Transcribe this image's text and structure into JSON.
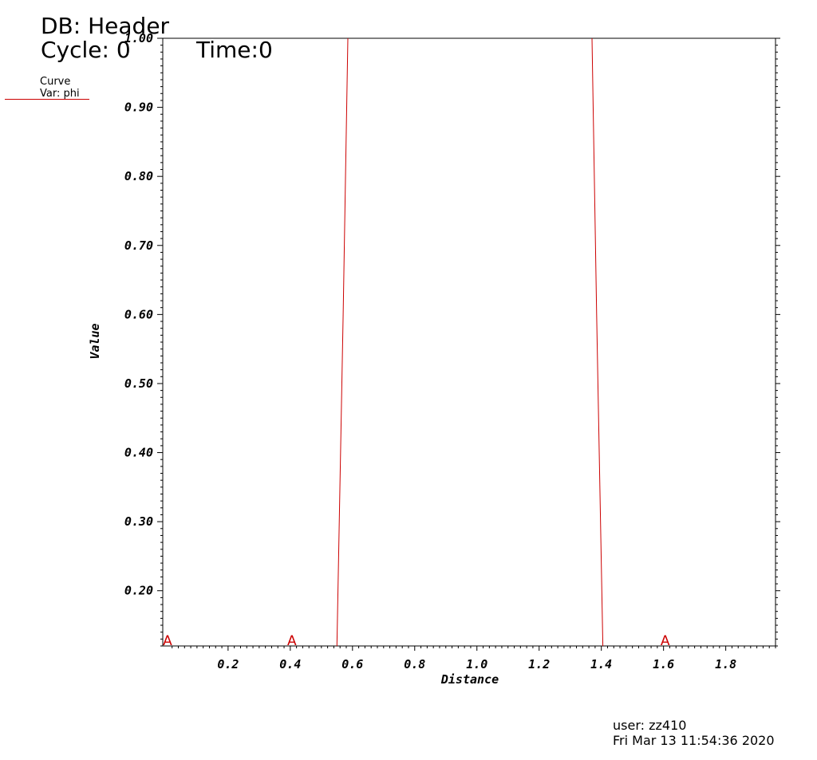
{
  "header": {
    "db": "DB: Header",
    "cycle": "Cycle: 0",
    "time": "Time:0"
  },
  "legend": {
    "label": "Curve",
    "var": "Var: phi",
    "color": "#cc0000"
  },
  "footer": {
    "user": "user: zz410",
    "date": "Fri Mar 13 11:54:36 2020"
  },
  "chart_data": {
    "type": "line",
    "xlabel": "Distance",
    "ylabel": "Value",
    "xlim": [
      -0.01,
      1.96
    ],
    "ylim": [
      0.12,
      1.0
    ],
    "xticks": [
      0.2,
      0.4,
      0.6,
      0.8,
      1.0,
      1.2,
      1.4,
      1.6,
      1.8
    ],
    "xtick_labels": [
      "0.2",
      "0.4",
      "0.6",
      "0.8",
      "1.0",
      "1.2",
      "1.4",
      "1.6",
      "1.8"
    ],
    "yticks": [
      0.2,
      0.3,
      0.4,
      0.5,
      0.6,
      0.7,
      0.8,
      0.9,
      1.0
    ],
    "ytick_labels": [
      "0.20",
      "0.30",
      "0.40",
      "0.50",
      "0.60",
      "0.70",
      "0.80",
      "0.90",
      "1.00"
    ],
    "grid": false,
    "series": [
      {
        "color": "#cc0000",
        "segments": [
          [
            [
              0.55,
              0.12
            ],
            [
              0.57,
              0.6
            ],
            [
              0.585,
              1.0
            ]
          ],
          [
            [
              1.37,
              1.0
            ],
            [
              1.385,
              0.6
            ],
            [
              1.405,
              0.12
            ]
          ]
        ]
      }
    ],
    "markers": [
      {
        "x": 0.0,
        "label": "A"
      },
      {
        "x": 0.4,
        "label": "A"
      },
      {
        "x": 1.6,
        "label": "A"
      }
    ]
  }
}
